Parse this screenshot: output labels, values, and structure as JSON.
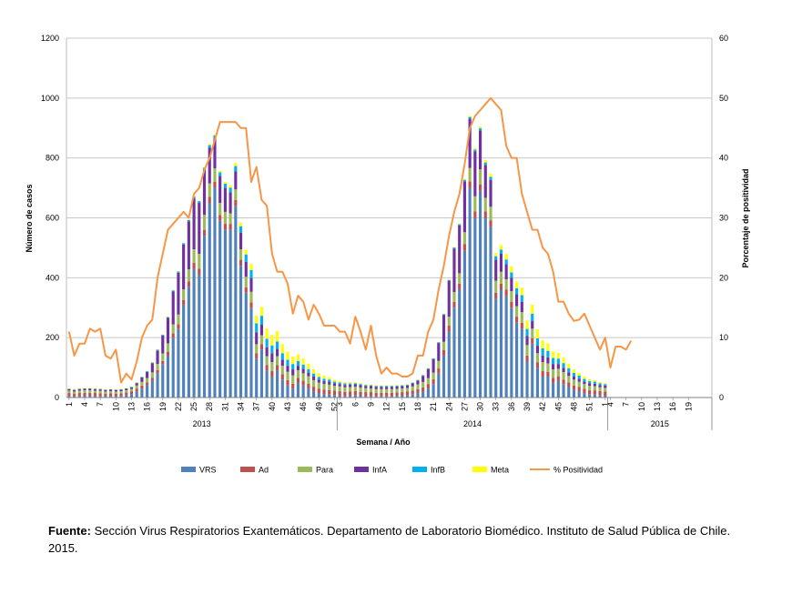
{
  "chart_data": {
    "type": "bar",
    "stacked": true,
    "xlabel": "Semana / Año",
    "ylabel": "Número de casos",
    "y2label": "Porcentaje de positividad",
    "ylim": [
      0,
      1200
    ],
    "y2lim": [
      0,
      60
    ],
    "yticks": [
      0,
      200,
      400,
      600,
      800,
      1000,
      1200
    ],
    "y2ticks": [
      0,
      10,
      20,
      30,
      40,
      50,
      60
    ],
    "grid": true,
    "legend_position": "bottom",
    "years": [
      {
        "label": "2013",
        "weeks": 52
      },
      {
        "label": "2014",
        "weeks": 52
      },
      {
        "label": "2015",
        "weeks": 20
      }
    ],
    "x_tick_labels": [
      "1",
      "4",
      "7",
      "10",
      "13",
      "16",
      "19",
      "22",
      "25",
      "28",
      "31",
      "34",
      "37",
      "40",
      "43",
      "46",
      "49",
      "52",
      "3",
      "6",
      "9",
      "12",
      "15",
      "18",
      "21",
      "24",
      "27",
      "30",
      "33",
      "36",
      "39",
      "42",
      "45",
      "48",
      "51",
      "1",
      "4",
      "7",
      "10",
      "13",
      "16",
      "19"
    ],
    "series": [
      {
        "name": "VRS",
        "color": "#4f81bd",
        "values": [
          5,
          4,
          5,
          6,
          6,
          5,
          4,
          4,
          5,
          4,
          5,
          8,
          12,
          20,
          30,
          40,
          55,
          80,
          110,
          140,
          200,
          230,
          310,
          370,
          430,
          410,
          540,
          650,
          700,
          590,
          560,
          560,
          640,
          440,
          350,
          300,
          130,
          160,
          90,
          70,
          90,
          60,
          40,
          30,
          50,
          40,
          30,
          20,
          15,
          12,
          10,
          8,
          6,
          5,
          6,
          8,
          6,
          5,
          5,
          4,
          4,
          4,
          4,
          5,
          6,
          8,
          10,
          15,
          20,
          30,
          45,
          80,
          140,
          220,
          300,
          360,
          490,
          700,
          600,
          690,
          600,
          570,
          330,
          360,
          340,
          300,
          250,
          230,
          120,
          180,
          100,
          70,
          70,
          50,
          55,
          45,
          35,
          25,
          20,
          15,
          10,
          10,
          8,
          6,
          0,
          0,
          0,
          0,
          0,
          0,
          0,
          0,
          0,
          0,
          0,
          0,
          0,
          0,
          0,
          0,
          0,
          0,
          0,
          0
        ]
      },
      {
        "name": "Ad",
        "color": "#c0504d",
        "values": [
          10,
          8,
          10,
          10,
          10,
          10,
          10,
          9,
          9,
          9,
          9,
          9,
          9,
          10,
          10,
          10,
          11,
          12,
          12,
          13,
          14,
          15,
          16,
          18,
          20,
          20,
          20,
          20,
          20,
          20,
          20,
          20,
          20,
          20,
          18,
          18,
          18,
          18,
          18,
          18,
          18,
          18,
          18,
          16,
          16,
          16,
          16,
          16,
          15,
          15,
          15,
          15,
          15,
          14,
          14,
          14,
          13,
          13,
          13,
          12,
          12,
          12,
          12,
          12,
          12,
          12,
          13,
          13,
          14,
          15,
          16,
          17,
          18,
          20,
          20,
          20,
          22,
          22,
          22,
          22,
          22,
          22,
          20,
          20,
          20,
          20,
          20,
          20,
          20,
          18,
          18,
          18,
          16,
          16,
          16,
          15,
          15,
          15,
          15,
          14,
          14,
          14,
          14,
          14,
          0,
          0,
          0,
          0,
          0,
          0,
          0,
          0,
          0,
          0,
          0,
          0,
          0,
          0,
          0,
          0,
          0,
          0,
          0,
          0
        ]
      },
      {
        "name": "Para",
        "color": "#9bbb59",
        "values": [
          8,
          8,
          8,
          8,
          8,
          8,
          8,
          7,
          7,
          7,
          7,
          7,
          8,
          10,
          12,
          15,
          18,
          20,
          25,
          28,
          30,
          32,
          35,
          40,
          45,
          50,
          50,
          45,
          45,
          40,
          40,
          35,
          35,
          35,
          35,
          35,
          30,
          30,
          30,
          30,
          30,
          28,
          28,
          28,
          25,
          25,
          25,
          22,
          20,
          18,
          18,
          16,
          16,
          15,
          15,
          14,
          14,
          13,
          12,
          12,
          12,
          12,
          12,
          12,
          12,
          12,
          14,
          16,
          18,
          20,
          22,
          25,
          28,
          30,
          32,
          35,
          40,
          45,
          50,
          50,
          45,
          45,
          40,
          40,
          35,
          35,
          35,
          35,
          35,
          32,
          30,
          30,
          28,
          28,
          25,
          25,
          22,
          20,
          18,
          16,
          15,
          14,
          12,
          12,
          0,
          0,
          0,
          0,
          0,
          0,
          0,
          0,
          0,
          0,
          0,
          0,
          0,
          0,
          0,
          0,
          0,
          0,
          0,
          0
        ]
      },
      {
        "name": "InfA",
        "color": "#7030a0",
        "values": [
          5,
          5,
          5,
          5,
          5,
          5,
          5,
          5,
          5,
          5,
          5,
          5,
          5,
          8,
          15,
          20,
          30,
          45,
          60,
          85,
          110,
          140,
          150,
          160,
          170,
          170,
          150,
          120,
          100,
          90,
          80,
          70,
          60,
          55,
          50,
          45,
          40,
          35,
          30,
          30,
          25,
          20,
          20,
          20,
          15,
          15,
          12,
          12,
          10,
          10,
          10,
          8,
          8,
          8,
          8,
          8,
          8,
          8,
          8,
          8,
          8,
          8,
          8,
          8,
          8,
          8,
          10,
          12,
          20,
          30,
          45,
          60,
          90,
          120,
          145,
          160,
          170,
          165,
          150,
          130,
          110,
          90,
          70,
          60,
          50,
          45,
          40,
          35,
          30,
          25,
          25,
          22,
          20,
          18,
          16,
          14,
          12,
          10,
          10,
          8,
          8,
          8,
          8,
          8,
          0,
          0,
          0,
          0,
          0,
          0,
          0,
          0,
          0,
          0,
          0,
          0,
          0,
          0,
          0,
          0,
          0,
          0,
          0,
          0
        ]
      },
      {
        "name": "InfB",
        "color": "#00b0f0",
        "values": [
          2,
          2,
          2,
          2,
          2,
          2,
          2,
          2,
          2,
          2,
          2,
          2,
          2,
          2,
          2,
          3,
          3,
          3,
          3,
          3,
          4,
          4,
          5,
          5,
          6,
          6,
          7,
          8,
          10,
          12,
          14,
          16,
          18,
          22,
          25,
          28,
          30,
          30,
          28,
          26,
          24,
          22,
          20,
          18,
          16,
          14,
          12,
          10,
          9,
          8,
          7,
          6,
          5,
          5,
          4,
          4,
          4,
          3,
          3,
          3,
          3,
          3,
          3,
          3,
          3,
          3,
          3,
          3,
          3,
          3,
          3,
          3,
          3,
          3,
          4,
          4,
          5,
          5,
          6,
          7,
          8,
          10,
          12,
          14,
          16,
          18,
          20,
          22,
          24,
          25,
          25,
          24,
          22,
          20,
          18,
          16,
          14,
          12,
          10,
          9,
          8,
          7,
          6,
          5,
          0,
          0,
          0,
          0,
          0,
          0,
          0,
          0,
          0,
          0,
          0,
          0,
          0,
          0,
          0,
          0,
          0,
          0,
          0,
          0
        ]
      },
      {
        "name": "Meta",
        "color": "#ffff00",
        "values": [
          1,
          1,
          1,
          1,
          1,
          1,
          1,
          1,
          1,
          1,
          1,
          1,
          1,
          1,
          1,
          1,
          1,
          1,
          1,
          1,
          1,
          1,
          1,
          2,
          2,
          2,
          3,
          3,
          4,
          5,
          6,
          8,
          10,
          12,
          15,
          20,
          25,
          30,
          35,
          35,
          35,
          30,
          28,
          25,
          22,
          20,
          18,
          15,
          12,
          10,
          8,
          6,
          5,
          4,
          4,
          3,
          3,
          2,
          2,
          2,
          2,
          2,
          2,
          2,
          1,
          1,
          1,
          1,
          1,
          1,
          1,
          1,
          1,
          1,
          2,
          2,
          3,
          4,
          5,
          6,
          8,
          10,
          12,
          15,
          18,
          20,
          22,
          25,
          28,
          30,
          30,
          28,
          25,
          22,
          20,
          18,
          15,
          12,
          10,
          8,
          6,
          5,
          4,
          3,
          0,
          0,
          0,
          0,
          0,
          0,
          0,
          0,
          0,
          0,
          0,
          0,
          0,
          0,
          0,
          0,
          0,
          0,
          0,
          0
        ]
      },
      {
        "name": "% Positividad",
        "color": "#f79646",
        "axis": "right",
        "type": "line",
        "values": [
          11,
          7,
          9,
          9,
          11.5,
          11,
          11.5,
          7,
          6.5,
          8,
          2.5,
          4,
          3,
          6,
          10,
          12,
          13,
          20,
          24,
          28,
          29,
          30,
          31,
          30,
          34,
          35,
          38,
          40,
          43,
          46,
          46,
          46,
          46,
          45,
          45,
          36,
          38.5,
          33,
          32,
          24,
          21,
          21,
          19,
          14,
          17,
          16,
          13,
          15.5,
          14,
          12,
          12,
          12,
          11,
          11,
          9,
          13.5,
          11,
          8,
          12,
          7,
          4,
          5,
          4,
          4,
          3.5,
          3.5,
          4,
          7,
          7,
          11,
          13,
          18,
          22,
          27,
          31,
          34,
          39,
          45,
          47,
          48,
          49,
          50,
          49,
          48,
          42,
          40,
          40,
          34,
          31,
          28,
          28,
          25,
          24,
          21,
          16,
          16,
          14,
          12.8,
          13,
          14,
          12,
          10,
          8,
          10,
          5,
          8.5,
          8.5,
          8,
          9.5
        ]
      }
    ]
  },
  "legend": [
    {
      "label": "VRS",
      "color": "#4f81bd",
      "kind": "bar"
    },
    {
      "label": "Ad",
      "color": "#c0504d",
      "kind": "bar"
    },
    {
      "label": "Para",
      "color": "#9bbb59",
      "kind": "bar"
    },
    {
      "label": "InfA",
      "color": "#7030a0",
      "kind": "bar"
    },
    {
      "label": "InfB",
      "color": "#00b0f0",
      "kind": "bar"
    },
    {
      "label": "Meta",
      "color": "#ffff00",
      "kind": "bar"
    },
    {
      "label": "% Positividad",
      "color": "#f79646",
      "kind": "line"
    }
  ],
  "footnote": {
    "label": "Fuente:",
    "text": " Sección Virus Respiratorios Exantemáticos. Departamento de Laboratorio Biomédico. Instituto de Salud Pública de Chile. 2015."
  }
}
